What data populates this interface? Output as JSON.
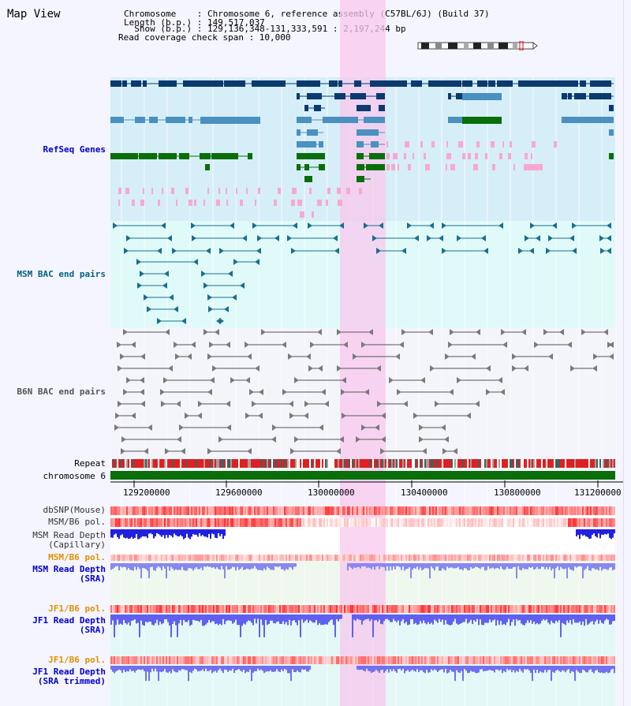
{
  "header": {
    "title": "Map View",
    "info_lines": [
      "Chromosome    : Chromosome 6, reference assembly (C57BL/6J) (Build 37)",
      "Length (b.p.) : 149,517,037",
      "  Show (b.p.) : 129,136,348-131,333,591 : 2,197,244 bp",
      "Read coverage check span : 10,000"
    ]
  },
  "tracks": {
    "refseq": "RefSeq Genes",
    "msm_bac": "MSM BAC end pairs",
    "b6n_bac": "B6N BAC end pairs",
    "repeat": "Repeat",
    "chromosome": "chromosome 6",
    "dbsnp": "dbSNP(Mouse)",
    "msm_b6_pol": "MSM/B6 pol.",
    "msm_read_depth_cap_1": "MSM Read Depth",
    "msm_read_depth_cap_2": "(Capillary)",
    "msm_b6_pol_2": "MSM/B6 pol.",
    "msm_read_depth_sra_1": "MSM Read Depth",
    "msm_read_depth_sra_2": "(SRA)",
    "jf1_b6_pol": "JF1/B6 pol.",
    "jf1_read_depth_sra_1": "JF1 Read Depth",
    "jf1_read_depth_sra_2": "(SRA)",
    "jf1_b6_pol_2": "JF1/B6 pol.",
    "jf1_read_depth_trim_1": "JF1 Read Depth",
    "jf1_read_depth_trim_2": "(SRA trimmed)"
  },
  "axis": {
    "ticks": [
      "129200000",
      "129600000",
      "130000000",
      "130400000",
      "130800000",
      "131200000"
    ]
  },
  "colors": {
    "refseq_bg": "#d6eef8",
    "msm_bg": "#e0fafa",
    "b6n_bg": "#f2f2fa",
    "highlight": "#f8d0f0",
    "gene_dark": "#0a3a6e",
    "gene_mid": "#4a90c0",
    "gene_green": "#0a6e0a",
    "gene_pink": "#f8a8d0",
    "bac_msm": "#1a6e8c",
    "bac_b6n": "#7a7a7a",
    "chromosome": "#0a6e0a"
  }
}
